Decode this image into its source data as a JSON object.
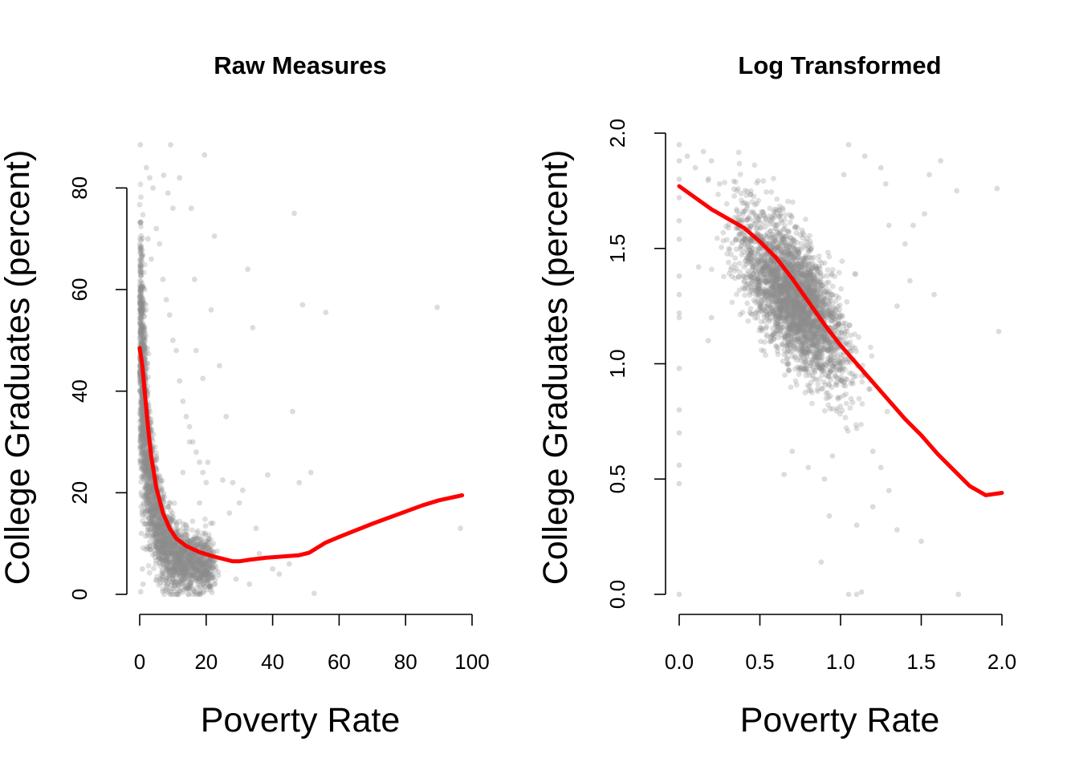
{
  "chart_data": [
    {
      "type": "scatter",
      "title": "Raw Measures",
      "xlabel": "Poverty Rate",
      "ylabel": "College Graduates (percent)",
      "xlim": [
        0,
        100
      ],
      "ylim": [
        0,
        90
      ],
      "xticks": [
        0,
        20,
        40,
        60,
        80,
        100
      ],
      "yticks": [
        0,
        20,
        40,
        60,
        80
      ],
      "point_color": "#8c8c8c",
      "line_color": "#ff0000",
      "grid": false,
      "legend": "none",
      "series": [
        {
          "kind": "points",
          "values": [
            [
              0.2,
              88.5
            ],
            [
              2,
              84
            ],
            [
              3,
              82
            ],
            [
              4,
              80
            ],
            [
              9.3,
              88.5
            ],
            [
              7.2,
              82.5
            ],
            [
              12,
              82
            ],
            [
              15.5,
              76
            ],
            [
              19.5,
              86.5
            ],
            [
              8.5,
              79
            ],
            [
              10,
              76
            ],
            [
              22.5,
              70.5
            ],
            [
              32.5,
              64
            ],
            [
              21.5,
              56
            ],
            [
              16.5,
              62
            ],
            [
              34,
              52.5
            ],
            [
              46.5,
              75
            ],
            [
              49,
              57
            ],
            [
              56,
              55.5
            ],
            [
              89.5,
              56.5
            ],
            [
              96.5,
              13
            ],
            [
              52.5,
              0.2
            ],
            [
              46,
              36
            ],
            [
              26,
              35
            ],
            [
              24,
              45
            ],
            [
              19,
              42.5
            ],
            [
              17,
              48
            ],
            [
              15,
              30
            ],
            [
              13,
              24
            ],
            [
              20.5,
              26
            ],
            [
              31,
              20.5
            ],
            [
              38.5,
              23.5
            ],
            [
              48,
              22
            ],
            [
              51.5,
              24
            ],
            [
              25,
              22.5
            ],
            [
              28,
              22
            ],
            [
              30,
              18
            ],
            [
              27,
              16
            ],
            [
              35,
              13
            ],
            [
              22,
              14
            ],
            [
              18,
              18
            ],
            [
              42,
              4
            ],
            [
              36,
              8
            ],
            [
              33,
              2
            ],
            [
              29,
              3
            ],
            [
              45,
              6
            ],
            [
              40,
              5
            ],
            [
              0.5,
              12
            ],
            [
              0.8,
              5
            ],
            [
              1,
              2
            ],
            [
              0.3,
              0.5
            ],
            [
              0.2,
              30
            ],
            [
              0.1,
              40
            ],
            [
              1.2,
              44
            ],
            [
              1.5,
              60
            ],
            [
              2.5,
              70
            ],
            [
              3.5,
              66
            ],
            [
              5,
              72
            ],
            [
              6,
              69
            ],
            [
              7,
              62
            ],
            [
              8,
              58
            ],
            [
              9,
              55
            ],
            [
              10,
              50
            ],
            [
              11,
              48
            ],
            [
              12,
              42
            ],
            [
              13,
              38
            ],
            [
              14,
              35
            ],
            [
              15,
              33
            ],
            [
              16,
              30
            ],
            [
              17,
              28
            ],
            [
              18,
              26
            ],
            [
              19,
              24
            ],
            [
              20,
              22
            ]
          ]
        },
        {
          "kind": "loess",
          "values": [
            [
              0,
              48.5
            ],
            [
              0.8,
              45
            ],
            [
              1.5,
              40
            ],
            [
              2.5,
              33
            ],
            [
              3.5,
              27
            ],
            [
              5,
              21
            ],
            [
              7,
              16
            ],
            [
              9,
              13
            ],
            [
              11,
              11
            ],
            [
              14,
              9.5
            ],
            [
              18,
              8.3
            ],
            [
              22,
              7.5
            ],
            [
              25,
              7
            ],
            [
              28,
              6.5
            ],
            [
              30,
              6.5
            ],
            [
              33,
              6.8
            ],
            [
              38,
              7.2
            ],
            [
              44,
              7.5
            ],
            [
              48,
              7.7
            ],
            [
              51,
              8.2
            ],
            [
              53,
              9
            ],
            [
              56,
              10.2
            ],
            [
              60,
              11.3
            ],
            [
              65,
              12.6
            ],
            [
              70,
              13.9
            ],
            [
              75,
              15.1
            ],
            [
              80,
              16.3
            ],
            [
              85,
              17.5
            ],
            [
              90,
              18.5
            ],
            [
              97,
              19.5
            ]
          ]
        }
      ]
    },
    {
      "type": "scatter",
      "title": "Log Transformed",
      "xlabel": "Poverty Rate",
      "ylabel": "College Graduates (percent)",
      "xlim": [
        0,
        2
      ],
      "ylim": [
        0,
        2
      ],
      "xticks": [
        0.0,
        0.5,
        1.0,
        1.5,
        2.0
      ],
      "yticks": [
        0.0,
        0.5,
        1.0,
        1.5,
        2.0
      ],
      "point_color": "#8c8c8c",
      "line_color": "#ff0000",
      "grid": false,
      "legend": "none",
      "series": [
        {
          "kind": "points",
          "values": [
            [
              0,
              1.95
            ],
            [
              0,
              1.88
            ],
            [
              0,
              1.8
            ],
            [
              0,
              1.72
            ],
            [
              0,
              1.62
            ],
            [
              0,
              1.54
            ],
            [
              0,
              1.38
            ],
            [
              0,
              1.3
            ],
            [
              0,
              1.22
            ],
            [
              0,
              1.2
            ],
            [
              0,
              0.98
            ],
            [
              0,
              0.8
            ],
            [
              0,
              0.7
            ],
            [
              0,
              0.56
            ],
            [
              0,
              0.48
            ],
            [
              0,
              0
            ],
            [
              0.05,
              1.9
            ],
            [
              0.1,
              1.85
            ],
            [
              0.15,
              1.92
            ],
            [
              0.2,
              1.88
            ],
            [
              0.25,
              1.78
            ],
            [
              0.12,
              1.42
            ],
            [
              0.18,
              1.1
            ],
            [
              0.2,
              1.2
            ],
            [
              1.1,
              0
            ],
            [
              1.05,
              0
            ],
            [
              1.13,
              0.01
            ],
            [
              1.73,
              0
            ],
            [
              0.88,
              0.14
            ],
            [
              0.93,
              0.34
            ],
            [
              1.5,
              0.23
            ],
            [
              1.98,
              1.14
            ],
            [
              1.97,
              1.76
            ],
            [
              1.72,
              1.75
            ],
            [
              1.62,
              1.88
            ],
            [
              1.55,
              1.82
            ],
            [
              1.52,
              1.65
            ],
            [
              1.45,
              1.6
            ],
            [
              1.4,
              1.52
            ],
            [
              1.43,
              1.36
            ],
            [
              1.58,
              1.3
            ],
            [
              1.35,
              1.25
            ],
            [
              1.3,
              1.6
            ],
            [
              1.28,
              1.78
            ],
            [
              1.25,
              1.85
            ],
            [
              1.15,
              1.9
            ],
            [
              1.05,
              1.95
            ],
            [
              1.02,
              1.82
            ],
            [
              1.1,
              0.3
            ],
            [
              1.2,
              0.38
            ],
            [
              1.3,
              0.45
            ],
            [
              1.35,
              0.28
            ],
            [
              1.25,
              0.55
            ],
            [
              1.2,
              0.62
            ],
            [
              1.1,
              0.72
            ],
            [
              0.95,
              0.6
            ],
            [
              0.9,
              0.5
            ],
            [
              0.8,
              0.55
            ],
            [
              0.65,
              0.52
            ],
            [
              0.7,
              0.62
            ]
          ]
        },
        {
          "kind": "loess",
          "values": [
            [
              0,
              1.77
            ],
            [
              0.1,
              1.72
            ],
            [
              0.2,
              1.67
            ],
            [
              0.3,
              1.63
            ],
            [
              0.4,
              1.59
            ],
            [
              0.5,
              1.53
            ],
            [
              0.6,
              1.46
            ],
            [
              0.7,
              1.37
            ],
            [
              0.8,
              1.27
            ],
            [
              0.9,
              1.17
            ],
            [
              1.0,
              1.08
            ],
            [
              1.1,
              1.0
            ],
            [
              1.2,
              0.92
            ],
            [
              1.3,
              0.84
            ],
            [
              1.4,
              0.76
            ],
            [
              1.5,
              0.69
            ],
            [
              1.6,
              0.61
            ],
            [
              1.7,
              0.54
            ],
            [
              1.8,
              0.47
            ],
            [
              1.9,
              0.43
            ],
            [
              2.0,
              0.44
            ]
          ]
        }
      ]
    }
  ]
}
